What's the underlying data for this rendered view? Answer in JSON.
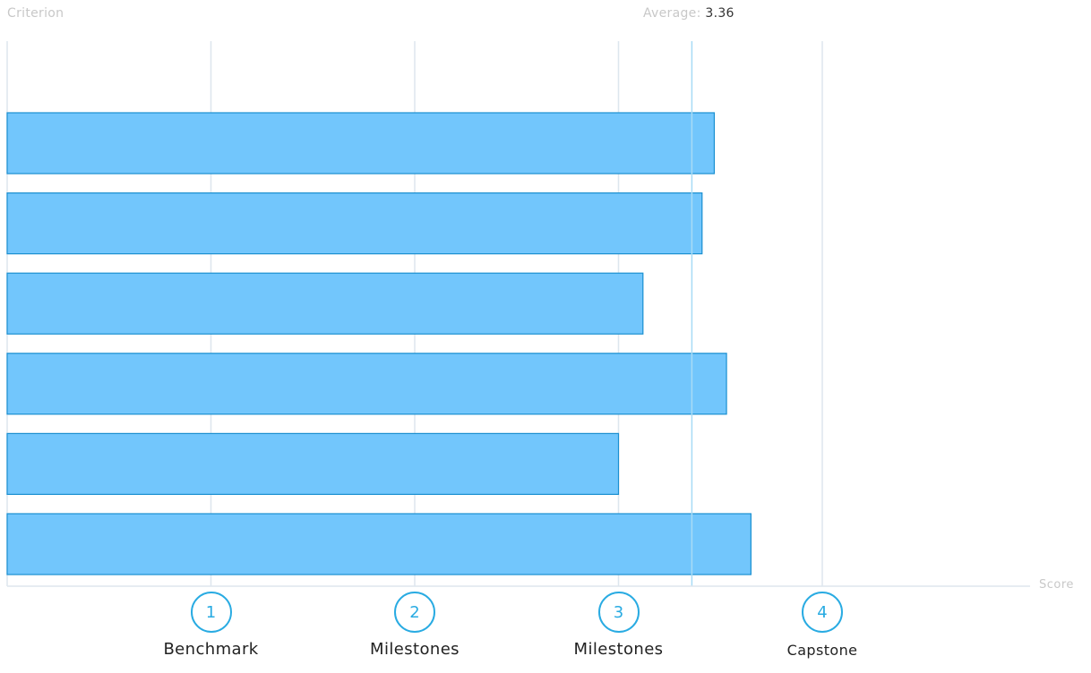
{
  "header": {
    "criterion_label": "Criterion",
    "average_label": "Average:",
    "average_value": "3.36"
  },
  "axis": {
    "score_label": "Score"
  },
  "levels": [
    {
      "number": "1",
      "name": "Benchmark"
    },
    {
      "number": "2",
      "name": "Milestones"
    },
    {
      "number": "3",
      "name": "Milestones"
    },
    {
      "number": "4",
      "name": "Capstone"
    }
  ],
  "colors": {
    "bar_fill": "#72c6fc",
    "bar_stroke": "#1a8fd0",
    "grid": "#dde6ee",
    "average_line": "#a8dbf5",
    "accent": "#29abe2"
  },
  "chart_data": {
    "type": "bar",
    "orientation": "horizontal",
    "categories": [
      "",
      "",
      "",
      "",
      "",
      ""
    ],
    "values": [
      3.47,
      3.41,
      3.12,
      3.53,
      3.0,
      3.65
    ],
    "average": 3.36,
    "xlim": [
      0,
      5
    ],
    "xticks": [
      1,
      2,
      3,
      4
    ],
    "xlabel": "Score",
    "ylabel": "Criterion",
    "grid": true
  }
}
